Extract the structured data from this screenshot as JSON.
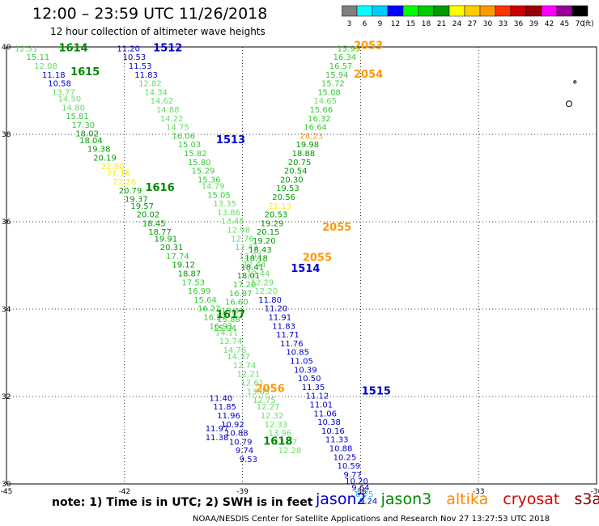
{
  "title": "12:00 – 23:59 UTC 11/26/2018",
  "subtitle": "12 hour collection of altimeter wave heights",
  "note": "note:  1) Time is in UTC;  2) SWH is in feet",
  "legend": [
    {
      "name": "jason2",
      "color": "#0000cc"
    },
    {
      "name": "jason3",
      "color": "#008800"
    },
    {
      "name": "altika",
      "color": "#ff8800"
    },
    {
      "name": "cryosat",
      "color": "#dd0000"
    },
    {
      "name": "s3a",
      "color": "#880000"
    }
  ],
  "credit": "NOAA/NESDIS Center for Satellite Applications and Research    Nov 27 13:27:53 UTC 2018",
  "colorbar": {
    "unit": "(ft)",
    "ticks": [
      "3",
      "6",
      "9",
      "12",
      "15",
      "18",
      "21",
      "24",
      "27",
      "30",
      "33",
      "36",
      "39",
      "42",
      "45",
      "70"
    ],
    "colors": [
      "#808080",
      "#00ffff",
      "#00ccff",
      "#0000ff",
      "#00ff00",
      "#00cc00",
      "#009900",
      "#ffff00",
      "#ffcc00",
      "#ff9900",
      "#ff3300",
      "#cc0000",
      "#990000",
      "#ff00ff",
      "#990099",
      "#000000"
    ]
  },
  "chart_data": {
    "type": "scatter",
    "xlim": [
      -45,
      -30
    ],
    "ylim": [
      30,
      40
    ],
    "xticks": [
      "-45",
      "-42",
      "-39",
      "-36",
      "-33",
      "-30"
    ],
    "yticks": [
      "30",
      "32",
      "34",
      "36",
      "38",
      "40"
    ],
    "grid": true,
    "passes": [
      {
        "id": "1614",
        "satellite": "jason3",
        "label_lon": -43.3,
        "label_lat": 39.9
      },
      {
        "id": "1615",
        "satellite": "jason3",
        "label_lon": -43.0,
        "label_lat": 39.35
      },
      {
        "id": "1512",
        "satellite": "jason2",
        "label_lon": -40.9,
        "label_lat": 39.9
      },
      {
        "id": "1513",
        "satellite": "jason2",
        "label_lon": -39.3,
        "label_lat": 37.8
      },
      {
        "id": "1616",
        "satellite": "jason3",
        "label_lon": -41.1,
        "label_lat": 36.7
      },
      {
        "id": "1617",
        "satellite": "jason3",
        "label_lon": -39.3,
        "label_lat": 33.8
      },
      {
        "id": "1618",
        "satellite": "jason3",
        "label_lon": -38.1,
        "label_lat": 30.9
      },
      {
        "id": "1514",
        "satellite": "jason2",
        "label_lon": -37.4,
        "label_lat": 34.85
      },
      {
        "id": "1515",
        "satellite": "jason2",
        "label_lon": -35.6,
        "label_lat": 32.05
      },
      {
        "id": "2053",
        "satellite": "altika",
        "label_lon": -35.8,
        "label_lat": 39.95
      },
      {
        "id": "2054",
        "satellite": "altika",
        "label_lon": -35.8,
        "label_lat": 39.3
      },
      {
        "id": "2055",
        "satellite": "altika",
        "label_lon": -36.6,
        "label_lat": 35.8
      },
      {
        "id": "2055",
        "satellite": "altika",
        "label_lon": -37.1,
        "label_lat": 35.1
      },
      {
        "id": "2056",
        "satellite": "altika",
        "label_lon": -38.3,
        "label_lat": 32.1
      }
    ],
    "points": [
      [
        -44.5,
        39.9,
        12.31
      ],
      [
        -44.2,
        39.7,
        15.11
      ],
      [
        -44.0,
        39.5,
        12.08
      ],
      [
        -43.8,
        39.3,
        11.18
      ],
      [
        -43.65,
        39.1,
        10.58
      ],
      [
        -43.55,
        38.9,
        13.77
      ],
      [
        -43.4,
        38.75,
        14.5
      ],
      [
        -43.3,
        38.55,
        14.8
      ],
      [
        -43.2,
        38.35,
        15.81
      ],
      [
        -43.05,
        38.15,
        17.3
      ],
      [
        -42.95,
        37.95,
        18.02
      ],
      [
        -42.85,
        37.8,
        18.04
      ],
      [
        -42.65,
        37.6,
        19.38
      ],
      [
        -42.5,
        37.4,
        20.19
      ],
      [
        -42.3,
        37.2,
        22.8
      ],
      [
        -42.15,
        37.05,
        21.16
      ],
      [
        -42.0,
        36.85,
        22.26
      ],
      [
        -41.85,
        36.65,
        20.79
      ],
      [
        -41.7,
        36.45,
        19.37
      ],
      [
        -41.55,
        36.3,
        19.57
      ],
      [
        -41.4,
        36.1,
        20.02
      ],
      [
        -41.25,
        35.9,
        18.45
      ],
      [
        -41.1,
        35.7,
        18.77
      ],
      [
        -40.95,
        35.55,
        19.91
      ],
      [
        -40.8,
        35.35,
        20.31
      ],
      [
        -40.65,
        35.15,
        17.74
      ],
      [
        -40.5,
        34.95,
        19.12
      ],
      [
        -40.35,
        34.75,
        18.87
      ],
      [
        -40.25,
        34.55,
        17.53
      ],
      [
        -40.1,
        34.35,
        16.99
      ],
      [
        -39.95,
        34.15,
        15.64
      ],
      [
        -39.85,
        33.95,
        16.22
      ],
      [
        -39.7,
        33.75,
        16.27
      ],
      [
        -39.55,
        33.55,
        16.93
      ],
      [
        -39.4,
        33.4,
        14.11
      ],
      [
        -39.3,
        33.2,
        13.74
      ],
      [
        -39.2,
        33.0,
        14.76
      ],
      [
        -39.1,
        32.85,
        14.37
      ],
      [
        -38.95,
        32.65,
        12.74
      ],
      [
        -38.85,
        32.45,
        12.21
      ],
      [
        -38.75,
        32.25,
        12.61
      ],
      [
        -38.6,
        32.05,
        13.05
      ],
      [
        -38.45,
        31.85,
        12.75
      ],
      [
        -38.35,
        31.7,
        12.27
      ],
      [
        -38.25,
        31.5,
        12.32
      ],
      [
        -38.15,
        31.3,
        12.33
      ],
      [
        -38.05,
        31.1,
        13.96
      ],
      [
        -37.9,
        30.9,
        12.07
      ],
      [
        -37.8,
        30.7,
        12.28
      ],
      [
        -41.9,
        39.9,
        11.2
      ],
      [
        -41.75,
        39.7,
        10.53
      ],
      [
        -41.6,
        39.5,
        11.53
      ],
      [
        -41.45,
        39.3,
        11.83
      ],
      [
        -41.35,
        39.1,
        12.82
      ],
      [
        -41.2,
        38.9,
        14.34
      ],
      [
        -41.05,
        38.7,
        14.62
      ],
      [
        -40.9,
        38.5,
        14.88
      ],
      [
        -40.8,
        38.3,
        14.22
      ],
      [
        -40.65,
        38.1,
        14.75
      ],
      [
        -40.5,
        37.9,
        16.06
      ],
      [
        -40.35,
        37.7,
        15.03
      ],
      [
        -40.2,
        37.5,
        15.82
      ],
      [
        -40.1,
        37.3,
        15.8
      ],
      [
        -40.0,
        37.1,
        15.29
      ],
      [
        -39.85,
        36.9,
        15.36
      ],
      [
        -39.75,
        36.75,
        14.79
      ],
      [
        -39.6,
        36.55,
        15.05
      ],
      [
        -39.45,
        36.35,
        13.35
      ],
      [
        -39.35,
        36.15,
        13.86
      ],
      [
        -39.25,
        35.95,
        13.45
      ],
      [
        -39.1,
        35.75,
        12.98
      ],
      [
        -39.0,
        35.55,
        12.76
      ],
      [
        -38.9,
        35.35,
        13.43
      ],
      [
        -38.8,
        35.15,
        13.92
      ],
      [
        -38.7,
        34.95,
        12.44
      ],
      [
        -38.6,
        34.75,
        12.44
      ],
      [
        -38.5,
        34.55,
        12.29
      ],
      [
        -38.4,
        34.35,
        12.2
      ],
      [
        -38.3,
        34.15,
        11.8
      ],
      [
        -38.15,
        33.95,
        11.2
      ],
      [
        -38.05,
        33.75,
        11.91
      ],
      [
        -37.95,
        33.55,
        11.83
      ],
      [
        -37.85,
        33.35,
        11.71
      ],
      [
        -37.75,
        33.15,
        11.76
      ],
      [
        -37.6,
        32.95,
        10.85
      ],
      [
        -37.5,
        32.75,
        11.05
      ],
      [
        -37.4,
        32.55,
        10.39
      ],
      [
        -37.3,
        32.35,
        10.5
      ],
      [
        -37.2,
        32.15,
        11.35
      ],
      [
        -37.1,
        31.95,
        11.12
      ],
      [
        -37.0,
        31.75,
        11.01
      ],
      [
        -36.9,
        31.55,
        11.06
      ],
      [
        -36.8,
        31.35,
        10.38
      ],
      [
        -36.7,
        31.15,
        10.16
      ],
      [
        -36.6,
        30.95,
        11.33
      ],
      [
        -36.5,
        30.75,
        10.88
      ],
      [
        -36.4,
        30.55,
        10.25
      ],
      [
        -36.3,
        30.35,
        10.59
      ],
      [
        -36.2,
        30.15,
        9.77
      ],
      [
        -36.1,
        30.0,
        10.2
      ],
      [
        -36.0,
        29.85,
        9.64
      ],
      [
        -35.9,
        29.7,
        8.75
      ],
      [
        -35.8,
        29.55,
        9.24
      ],
      [
        -36.3,
        39.9,
        15.95
      ],
      [
        -36.4,
        39.7,
        16.34
      ],
      [
        -36.5,
        39.5,
        16.57
      ],
      [
        -36.6,
        39.3,
        15.94
      ],
      [
        -36.7,
        39.1,
        15.72
      ],
      [
        -36.8,
        38.9,
        15.08
      ],
      [
        -36.9,
        38.7,
        14.65
      ],
      [
        -37.0,
        38.5,
        15.66
      ],
      [
        -37.05,
        38.3,
        16.32
      ],
      [
        -37.15,
        38.1,
        16.64
      ],
      [
        -37.25,
        37.9,
        28.23
      ],
      [
        -37.35,
        37.7,
        19.98
      ],
      [
        -37.45,
        37.5,
        18.88
      ],
      [
        -37.55,
        37.3,
        20.75
      ],
      [
        -37.65,
        37.1,
        20.54
      ],
      [
        -37.75,
        36.9,
        20.3
      ],
      [
        -37.85,
        36.7,
        19.53
      ],
      [
        -37.95,
        36.5,
        20.56
      ],
      [
        -38.05,
        36.3,
        21.13
      ],
      [
        -38.15,
        36.1,
        20.53
      ],
      [
        -38.25,
        35.9,
        19.29
      ],
      [
        -38.35,
        35.7,
        20.15
      ],
      [
        -38.45,
        35.5,
        19.2
      ],
      [
        -38.55,
        35.3,
        18.43
      ],
      [
        -38.65,
        35.1,
        18.18
      ],
      [
        -38.75,
        34.9,
        18.41
      ],
      [
        -38.85,
        34.7,
        18.01
      ],
      [
        -38.95,
        34.5,
        17.2
      ],
      [
        -39.05,
        34.3,
        16.87
      ],
      [
        -39.15,
        34.1,
        16.6
      ],
      [
        -39.25,
        33.9,
        15.91
      ],
      [
        -39.35,
        33.7,
        15.88
      ],
      [
        -39.45,
        33.5,
        15.04
      ],
      [
        -39.55,
        31.9,
        11.4
      ],
      [
        -39.45,
        31.7,
        11.85
      ],
      [
        -39.35,
        31.5,
        11.96
      ],
      [
        -39.25,
        31.3,
        10.92
      ],
      [
        -39.15,
        31.1,
        10.88
      ],
      [
        -39.05,
        30.9,
        10.79
      ],
      [
        -38.95,
        30.7,
        9.74
      ],
      [
        -38.85,
        30.5,
        9.53
      ],
      [
        -39.65,
        31.2,
        11.97
      ],
      [
        -39.65,
        31.0,
        11.38
      ]
    ]
  }
}
